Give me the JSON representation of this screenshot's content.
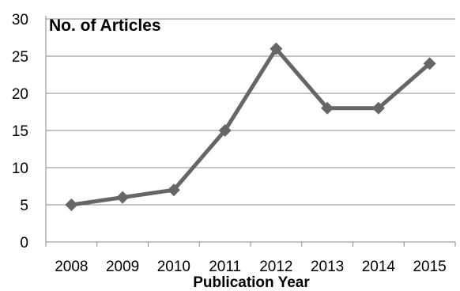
{
  "chart_data": {
    "type": "line",
    "categories": [
      "2008",
      "2009",
      "2010",
      "2011",
      "2012",
      "2013",
      "2014",
      "2015"
    ],
    "values": [
      5,
      6,
      7,
      15,
      26,
      18,
      18,
      24
    ],
    "ylabel": "No. of Articles",
    "xlabel": "Publication Year",
    "ylim": [
      0,
      30
    ],
    "yticks": [
      "0",
      "5",
      "10",
      "15",
      "20",
      "25",
      "30"
    ],
    "grid": "horizontal",
    "colors": {
      "line": "#666666",
      "marker": "#666666",
      "grid": "#888888",
      "axis": "#888888"
    }
  }
}
